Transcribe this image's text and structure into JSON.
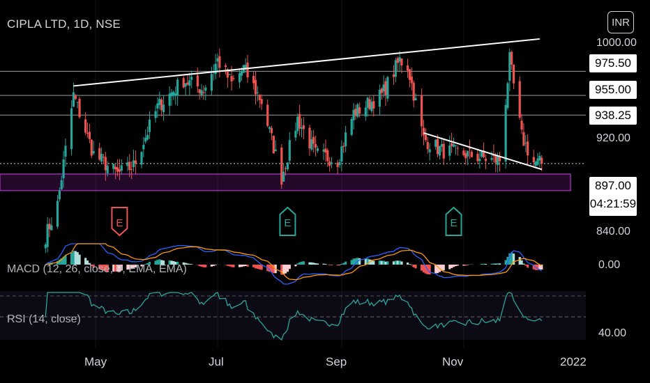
{
  "header": {
    "title": "CIPLA LTD, 1D, NSE",
    "currency": "INR"
  },
  "price_axis": {
    "ticks": [
      {
        "label": "1000.00",
        "value": 1000
      },
      {
        "label": "920.00",
        "value": 920
      },
      {
        "label": "840.00",
        "value": 840
      }
    ],
    "level_badges": [
      {
        "label": "975.50",
        "value": 975.5
      },
      {
        "label": "955.00",
        "value": 955
      },
      {
        "label": "938.25",
        "value": 938.25
      }
    ],
    "current_price": "897.00",
    "countdown": "04:21:59"
  },
  "indicators": {
    "macd_label": "MACD (12, 26, close, 9, EMA, EMA)",
    "macd_zero": "0.00",
    "rsi_label": "RSI (14, close)",
    "rsi_tick": "40.00"
  },
  "time_axis": [
    "May",
    "Jul",
    "Sep",
    "Nov",
    "2022"
  ],
  "earnings_markers": [
    "E",
    "E",
    "E"
  ],
  "colors": {
    "up": "#26a69a",
    "down": "#ef5350",
    "line": "#ffffff",
    "zone": "#9c27b0",
    "rsi": "#26a69a",
    "macd": "#2962ff",
    "signal": "#ff9800"
  },
  "chart_data": {
    "type": "candlestick",
    "symbol": "CIPLA LTD",
    "interval": "1D",
    "exchange": "NSE",
    "y_range": [
      825,
      1005
    ],
    "horizontal_levels": [
      975.5,
      955,
      938.25
    ],
    "current_price": 897,
    "support_zone": [
      874,
      888
    ],
    "trendlines": [
      {
        "name": "upper resistance",
        "from": {
          "date": "2021-04-20",
          "price": 963
        },
        "to": {
          "date": "2021-12-09",
          "price": 1003
        }
      },
      {
        "name": "descending",
        "from": {
          "date": "2021-10-12",
          "price": 923
        },
        "to": {
          "date": "2021-12-10",
          "price": 892
        }
      }
    ],
    "anchor_closes": [
      {
        "date": "2021-04-06",
        "close": 835
      },
      {
        "date": "2021-04-12",
        "close": 862
      },
      {
        "date": "2021-04-20",
        "close": 955
      },
      {
        "date": "2021-04-30",
        "close": 905
      },
      {
        "date": "2021-05-12",
        "close": 888
      },
      {
        "date": "2021-05-20",
        "close": 895
      },
      {
        "date": "2021-06-01",
        "close": 945
      },
      {
        "date": "2021-06-14",
        "close": 968
      },
      {
        "date": "2021-06-24",
        "close": 960
      },
      {
        "date": "2021-07-01",
        "close": 985
      },
      {
        "date": "2021-07-08",
        "close": 965
      },
      {
        "date": "2021-07-14",
        "close": 978
      },
      {
        "date": "2021-07-23",
        "close": 950
      },
      {
        "date": "2021-08-02",
        "close": 885
      },
      {
        "date": "2021-08-10",
        "close": 935
      },
      {
        "date": "2021-08-19",
        "close": 905
      },
      {
        "date": "2021-08-30",
        "close": 900
      },
      {
        "date": "2021-09-07",
        "close": 940
      },
      {
        "date": "2021-09-21",
        "close": 955
      },
      {
        "date": "2021-09-30",
        "close": 985
      },
      {
        "date": "2021-10-04",
        "close": 980
      },
      {
        "date": "2021-10-12",
        "close": 918
      },
      {
        "date": "2021-10-21",
        "close": 908
      },
      {
        "date": "2021-11-02",
        "close": 905
      },
      {
        "date": "2021-11-15",
        "close": 900
      },
      {
        "date": "2021-11-19",
        "close": 900
      },
      {
        "date": "2021-11-24",
        "close": 985
      },
      {
        "date": "2021-11-30",
        "close": 920
      },
      {
        "date": "2021-12-06",
        "close": 898
      },
      {
        "date": "2021-12-10",
        "close": 897
      }
    ],
    "xlim": [
      "2021-04-01",
      "2022-01-03"
    ]
  }
}
